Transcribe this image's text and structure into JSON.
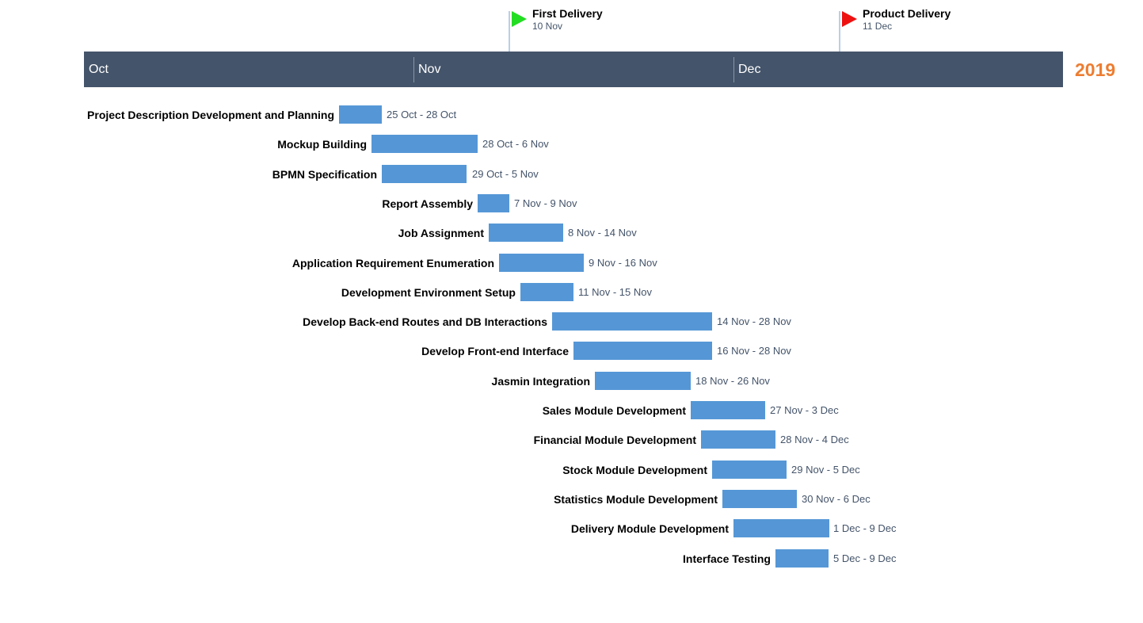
{
  "chart_data": {
    "type": "gantt",
    "year": "2019",
    "axis": {
      "start": "2019-10-01",
      "end": "2020-01-01",
      "months": [
        {
          "label": "Oct",
          "start": "2019-10-01"
        },
        {
          "label": "Nov",
          "start": "2019-11-01"
        },
        {
          "label": "Dec",
          "start": "2019-12-01"
        }
      ]
    },
    "milestones": [
      {
        "name": "First Delivery",
        "date_label": "10 Nov",
        "date": "2019-11-10",
        "color": "#22dd22"
      },
      {
        "name": "Product Delivery",
        "date_label": "11 Dec",
        "date": "2019-12-11",
        "color": "#ee1111"
      }
    ],
    "tasks": [
      {
        "name": "Project Description Development and Planning",
        "label": "25 Oct - 28 Oct",
        "start": "2019-10-25",
        "end": "2019-10-29"
      },
      {
        "name": "Mockup Building",
        "label": "28 Oct - 6 Nov",
        "start": "2019-10-28",
        "end": "2019-11-07"
      },
      {
        "name": "BPMN Specification",
        "label": "29 Oct - 5 Nov",
        "start": "2019-10-29",
        "end": "2019-11-06"
      },
      {
        "name": "Report Assembly",
        "label": "7 Nov - 9 Nov",
        "start": "2019-11-07",
        "end": "2019-11-10"
      },
      {
        "name": "Job Assignment",
        "label": "8 Nov - 14 Nov",
        "start": "2019-11-08",
        "end": "2019-11-15"
      },
      {
        "name": "Application Requirement Enumeration",
        "label": "9 Nov - 16 Nov",
        "start": "2019-11-09",
        "end": "2019-11-17"
      },
      {
        "name": "Development Environment Setup",
        "label": "11 Nov - 15 Nov",
        "start": "2019-11-11",
        "end": "2019-11-16"
      },
      {
        "name": "Develop Back-end Routes and DB Interactions",
        "label": "14 Nov - 28 Nov",
        "start": "2019-11-14",
        "end": "2019-11-29"
      },
      {
        "name": "Develop Front-end Interface",
        "label": "16 Nov - 28 Nov",
        "start": "2019-11-16",
        "end": "2019-11-29"
      },
      {
        "name": "Jasmin Integration",
        "label": "18 Nov - 26 Nov",
        "start": "2019-11-18",
        "end": "2019-11-27"
      },
      {
        "name": "Sales Module Development",
        "label": "27 Nov - 3 Dec",
        "start": "2019-11-27",
        "end": "2019-12-04"
      },
      {
        "name": "Financial Module Development",
        "label": "28 Nov - 4 Dec",
        "start": "2019-11-28",
        "end": "2019-12-05"
      },
      {
        "name": "Stock Module Development",
        "label": "29 Nov - 5 Dec",
        "start": "2019-11-29",
        "end": "2019-12-06"
      },
      {
        "name": "Statistics Module Development",
        "label": "30 Nov - 6 Dec",
        "start": "2019-11-30",
        "end": "2019-12-07"
      },
      {
        "name": "Delivery Module Development",
        "label": "1 Dec - 9 Dec",
        "start": "2019-12-01",
        "end": "2019-12-10"
      },
      {
        "name": "Interface Testing",
        "label": "5 Dec - 9 Dec",
        "start": "2019-12-05",
        "end": "2019-12-10"
      }
    ],
    "bar_color": "#5597d6",
    "band_color": "#44546a",
    "year_color": "#ed7d31"
  }
}
